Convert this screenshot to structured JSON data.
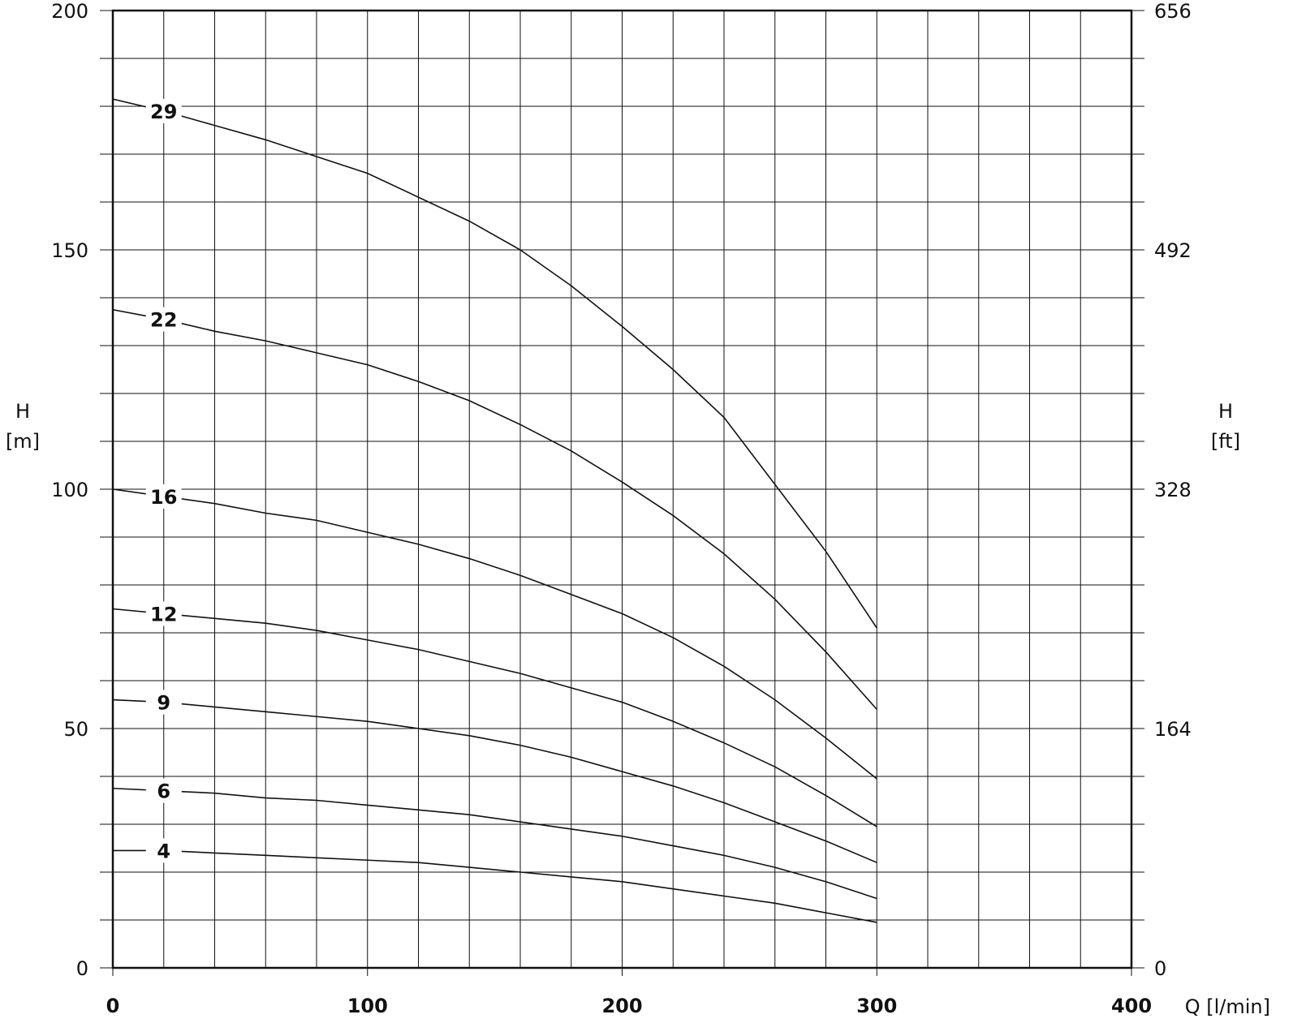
{
  "chart_data": {
    "type": "line",
    "xlabel": "Q [l/min]",
    "ylabel": {
      "name": "H",
      "unit": "[m]"
    },
    "y2label": {
      "name": "H",
      "unit": "[ft]"
    },
    "x": [
      0,
      20,
      40,
      60,
      80,
      100,
      120,
      140,
      160,
      180,
      200,
      220,
      240,
      260,
      280,
      300
    ],
    "series": [
      {
        "name": "29",
        "color": "#111111",
        "values": [
          181.5,
          179,
          176,
          173,
          169.5,
          166,
          161,
          156,
          150,
          142.5,
          134,
          125,
          115,
          101,
          87,
          71
        ]
      },
      {
        "name": "22",
        "color": "#111111",
        "values": [
          137.5,
          135.5,
          133,
          131,
          128.5,
          126,
          122.5,
          118.5,
          113.5,
          108,
          101.5,
          94.5,
          86.5,
          77,
          66,
          54
        ]
      },
      {
        "name": "16",
        "color": "#111111",
        "values": [
          100,
          98.5,
          97,
          95,
          93.5,
          91,
          88.5,
          85.5,
          82,
          78,
          74,
          69,
          63,
          56,
          48,
          39.5
        ]
      },
      {
        "name": "12",
        "color": "#111111",
        "values": [
          75,
          74,
          73,
          72,
          70.5,
          68.5,
          66.5,
          64,
          61.5,
          58.5,
          55.5,
          51.5,
          47,
          42,
          36,
          29.5
        ]
      },
      {
        "name": "9",
        "color": "#111111",
        "values": [
          56,
          55.5,
          54.5,
          53.5,
          52.5,
          51.5,
          50,
          48.5,
          46.5,
          44,
          41,
          38,
          34.5,
          30.5,
          26.5,
          22
        ]
      },
      {
        "name": "6",
        "color": "#111111",
        "values": [
          37.5,
          37,
          36.5,
          35.5,
          35,
          34,
          33,
          32,
          30.5,
          29,
          27.5,
          25.5,
          23.5,
          21,
          18,
          14.5
        ]
      },
      {
        "name": "4",
        "color": "#111111",
        "values": [
          24.5,
          24.5,
          24,
          23.5,
          23,
          22.5,
          22,
          21,
          20,
          19,
          18,
          16.5,
          15,
          13.5,
          11.5,
          9.5
        ]
      }
    ],
    "xlim": [
      0,
      400
    ],
    "ylim": [
      0,
      200
    ],
    "y2lim": [
      0,
      656
    ],
    "xticks": [
      0,
      100,
      200,
      300,
      400
    ],
    "yticks": [
      0,
      50,
      100,
      150,
      200
    ],
    "y2ticks": [
      0,
      164,
      328,
      492,
      656
    ],
    "xgrid": [
      20,
      40,
      60,
      80,
      100,
      120,
      140,
      160,
      180,
      200,
      220,
      240,
      260,
      280,
      300,
      320,
      340,
      360,
      380
    ],
    "ygrid": [
      10,
      20,
      30,
      40,
      50,
      60,
      70,
      80,
      90,
      100,
      110,
      120,
      130,
      140,
      150,
      160,
      170,
      180,
      190
    ]
  }
}
